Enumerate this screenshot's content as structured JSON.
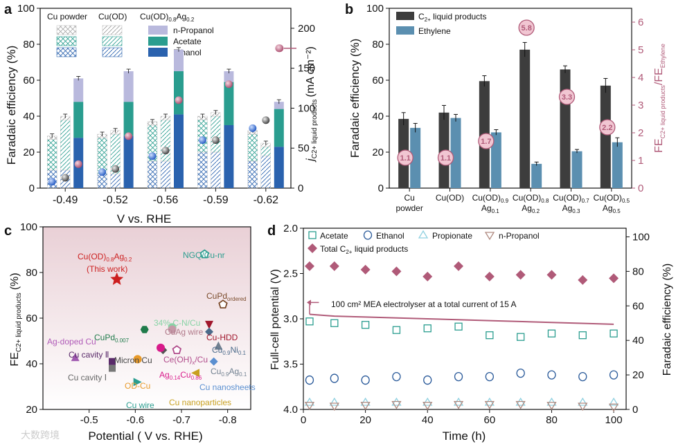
{
  "panels": {
    "a": "a",
    "b": "b",
    "c": "c",
    "d": "d"
  },
  "chart_data": [
    {
      "panel": "a",
      "type": "bar",
      "xlabel": "V vs. RHE",
      "ylabel": "Faradaic efficiency (%)",
      "ylabel2_main": "j",
      "ylabel2_sub": "C2+ liquid products",
      "ylabel2_unit": "(mA cm⁻²)",
      "categories": [
        "-0.49",
        "-0.52",
        "-0.56",
        "-0.59",
        "-0.62"
      ],
      "ylim": [
        0,
        100
      ],
      "y2lim": [
        0,
        225
      ],
      "yticks": [
        0,
        20,
        40,
        60,
        80,
        100
      ],
      "y2ticks": [
        0,
        50,
        100,
        150,
        200
      ],
      "catalyst_legend": [
        "Cu powder",
        "Cu(OD)",
        "Cu(OD)0.8Ag0.2"
      ],
      "product_legend": [
        {
          "name": "n-Propanol",
          "color": "#b9b9dd"
        },
        {
          "name": "Acetate",
          "color": "#2a9d8f"
        },
        {
          "name": "Ethanol",
          "color": "#2a62ae"
        }
      ],
      "groups": [
        {
          "catalyst": "Cu powder",
          "ethanol": [
            10,
            8,
            15,
            20,
            15
          ],
          "acetate": [
            17,
            20,
            20,
            18,
            15
          ],
          "propanol": [
            2,
            2,
            2,
            2,
            2
          ]
        },
        {
          "catalyst": "Cu(OD)",
          "ethanol": [
            10,
            8,
            15,
            20,
            18
          ],
          "acetate": [
            28,
            22,
            23,
            20,
            5
          ],
          "propanol": [
            2,
            2,
            2,
            2,
            2
          ]
        },
        {
          "catalyst": "Cu(OD)0.8Ag0.2",
          "ethanol": [
            28,
            29,
            41,
            35,
            23
          ],
          "acetate": [
            20,
            19,
            24,
            24,
            21
          ],
          "propanol": [
            13,
            17,
            12,
            6,
            4
          ]
        }
      ],
      "current_density": {
        "Cu powder": [
          8,
          20,
          40,
          60,
          75
        ],
        "Cu(OD)": [
          13,
          24,
          47,
          60,
          85
        ],
        "Cu(OD)0.8Ag0.2": [
          30,
          65,
          110,
          130,
          175
        ]
      }
    },
    {
      "panel": "b",
      "type": "bar",
      "ylabel": "Faradaic efficiency (%)",
      "ylabel2_main": "FE",
      "ylabel2_sub1": "C2+ liquid products",
      "ylabel2_mid": "/FE",
      "ylabel2_sub2": "Ethylene",
      "ylim": [
        0,
        100
      ],
      "y2lim": [
        0,
        6.5
      ],
      "yticks": [
        0,
        20,
        40,
        60,
        80,
        100
      ],
      "y2ticks": [
        0,
        1,
        2,
        3,
        4,
        5,
        6
      ],
      "categories": [
        {
          "line1": "Cu",
          "line2": "powder",
          "sub1": "",
          "sub2": ""
        },
        {
          "line1": "Cu(OD)",
          "line2": "",
          "sub1": "",
          "sub2": ""
        },
        {
          "line1": "Cu(OD)",
          "sub1": "0.9",
          "line2": "Ag",
          "sub2": "0.1"
        },
        {
          "line1": "Cu(OD)",
          "sub1": "0.8",
          "line2": "Ag",
          "sub2": "0.2"
        },
        {
          "line1": "Cu(OD)",
          "sub1": "0.7",
          "line2": "Ag",
          "sub2": "0.3"
        },
        {
          "line1": "Cu(OD)",
          "sub1": "0.5",
          "line2": "Ag",
          "sub2": "0.5"
        }
      ],
      "series": [
        {
          "name": "C2+ liquid products",
          "color": "#3d3d3d",
          "values": [
            38.5,
            42,
            59.5,
            77,
            66,
            57
          ],
          "errors": [
            3.5,
            4,
            3,
            4,
            2,
            4
          ]
        },
        {
          "name": "Ethylene",
          "color": "#5b8fb0",
          "values": [
            33.5,
            39,
            31,
            13.5,
            20.5,
            25.5
          ],
          "errors": [
            2.5,
            2,
            1.5,
            1,
            1,
            2.5
          ]
        }
      ],
      "ratios": [
        1.1,
        1.1,
        1.7,
        5.8,
        3.3,
        2.2
      ],
      "ratio_labels": [
        "1.1",
        "1.1",
        "1.7",
        "5.8",
        "3.3",
        "2.2"
      ]
    },
    {
      "panel": "c",
      "type": "scatter",
      "xlabel": "Potential ( V vs. RHE)",
      "ylabel_main": "FE",
      "ylabel_sub": "C2+ liquid products",
      "ylabel_unit": "(%)",
      "xlim": [
        -0.4,
        -0.85
      ],
      "ylim": [
        20,
        100
      ],
      "xticks": [
        "-0.5",
        "-0.6",
        "-0.7",
        "-0.8"
      ],
      "yticks": [
        20,
        40,
        60,
        80,
        100
      ],
      "points": [
        {
          "label": "Cu(OD)0.8Ag0.2 (This work)",
          "x": -0.56,
          "y": 77,
          "color": "#cc1f1f",
          "shape": "star"
        },
        {
          "label": "NGQ/Cu-nr",
          "x": -0.75,
          "y": 88,
          "color": "#2a9d8f",
          "shape": "pentagon"
        },
        {
          "label": "CuPd ordered",
          "x": -0.79,
          "y": 66,
          "color": "#7a4a2a",
          "shape": "pentagon"
        },
        {
          "label": "34% C-N/Cu",
          "x": -0.68,
          "y": 56,
          "color": "#88d4a6",
          "shape": "circle"
        },
        {
          "label": "CuAg wire",
          "x": -0.68,
          "y": 55,
          "color": "#c59aa8",
          "shape": "circle"
        },
        {
          "label": "CuPd0.007",
          "x": -0.62,
          "y": 55,
          "color": "#1f7a4a",
          "shape": "hexagon"
        },
        {
          "label": "Cu-HDD",
          "x": -0.76,
          "y": 57,
          "color": "#a0162c",
          "shape": "tri-down"
        },
        {
          "label": "Cu0.9Ni0.1",
          "x": -0.76,
          "y": 54,
          "color": "#4a6a8a",
          "shape": "diamond"
        },
        {
          "label": "Micron Cu",
          "x": -0.66,
          "y": 46,
          "color": "#555555",
          "shape": "diamond"
        },
        {
          "label": "Ce(OH)x/Cu",
          "x": -0.69,
          "y": 46,
          "color": "#b04a8a",
          "shape": "pentagon"
        },
        {
          "label": "Ag0.14Cu0.86",
          "x": -0.655,
          "y": 47,
          "color": "#d81b8a",
          "shape": "circle"
        },
        {
          "label": "Cu0.9Ag0.1",
          "x": -0.78,
          "y": 48,
          "color": "#708090",
          "shape": "triangle"
        },
        {
          "label": "Ag-doped Cu",
          "x": -0.47,
          "y": 43,
          "color": "#a05ab0",
          "shape": "triangle"
        },
        {
          "label": "Cu cavity II",
          "x": -0.55,
          "y": 41,
          "color": "#5a2a6a",
          "shape": "square"
        },
        {
          "label": "Cu cavity I",
          "x": -0.55,
          "y": 38,
          "color": "#777777",
          "shape": "square"
        },
        {
          "label": "OD-Cu",
          "x": -0.605,
          "y": 42,
          "color": "#e89a2a",
          "shape": "circle"
        },
        {
          "label": "Cu nanosheets",
          "x": -0.77,
          "y": 41,
          "color": "#5b8fd0",
          "shape": "diamond"
        },
        {
          "label": "Cu nanoparticles",
          "x": -0.73,
          "y": 36,
          "color": "#c8a020",
          "shape": "tri-left"
        },
        {
          "label": "Cu wire",
          "x": -0.605,
          "y": 32,
          "color": "#2a9d8f",
          "shape": "tri-right"
        }
      ],
      "label_texts": {
        "this_work_1": "Cu(OD)",
        "this_work_1a": "0.8",
        "this_work_1b": "Ag",
        "this_work_1c": "0.2",
        "this_work_2": "(This work)",
        "ngq": "NGQ/Cu-nr",
        "cupd_o_a": "CuPd",
        "cupd_o_b": "ordered",
        "cn": "34% C-N/Cu",
        "cuag": "CuAg wire",
        "cupd007a": "CuPd",
        "cupd007b": "0.007",
        "hdd": "Cu-HDD",
        "cuni_a": "Cu",
        "cuni_b": "0.9",
        "cuni_c": "Ni",
        "cuni_d": "0.1",
        "micron": "Micron Cu",
        "ceoh": "Ce(OH)",
        "ceoh_x": "x",
        "ceoh_b": "/Cu",
        "agcu_a": "Ag",
        "agcu_b": "0.14",
        "agcu_c": "Cu",
        "agcu_d": "0.86",
        "cuag01a": "Cu",
        "cuag01b": "0.9",
        "cuag01c": "Ag",
        "cuag01d": "0.1",
        "agdoped": "Ag-doped Cu",
        "cav2": "Cu cavity Ⅱ",
        "cav1": "Cu cavity Ⅰ",
        "odcu": "OD-Cu",
        "sheets": "Cu nanosheets",
        "nanop": "Cu nanoparticles",
        "wire": "Cu wire"
      }
    },
    {
      "panel": "d",
      "type": "scatter",
      "xlabel": "Time (h)",
      "ylabel": "Full-cell potential (V)",
      "ylabel2": "Faradaic efficiency (%)",
      "xlim": [
        0,
        104
      ],
      "ylim_reversed": [
        2.0,
        4.0
      ],
      "y2lim": [
        0,
        105
      ],
      "xticks": [
        0,
        20,
        40,
        60,
        80,
        100
      ],
      "yticks": [
        "2.0",
        "2.5",
        "3.0",
        "3.5",
        "4.0"
      ],
      "y2ticks": [
        0,
        20,
        40,
        60,
        80,
        100
      ],
      "annotation": "100 cm² MEA electrolyser at a total current of 15 A",
      "legend": {
        "acetate": "Acetate",
        "ethanol": "Ethanol",
        "propionate": "Propionate",
        "propanol": "n-Propanol",
        "total_a": "Total C",
        "total_b": "2+",
        "total_c": " liquid products"
      },
      "x": [
        2,
        10,
        20,
        30,
        40,
        50,
        60,
        70,
        80,
        90,
        100
      ],
      "series": [
        {
          "name": "Acetate",
          "color": "#2a9d8f",
          "values": [
            51,
            50,
            49,
            46,
            47,
            48,
            43,
            42,
            44,
            43,
            44
          ]
        },
        {
          "name": "Ethanol",
          "color": "#2a5a9a",
          "values": [
            17,
            18,
            17,
            19,
            17,
            19,
            19,
            21,
            20,
            19,
            20
          ]
        },
        {
          "name": "Propionate",
          "color": "#8fd0e0",
          "values": [
            4,
            4,
            4,
            4,
            4,
            4,
            4,
            4,
            4,
            4,
            4
          ]
        },
        {
          "name": "n-Propanol",
          "color": "#b08a80",
          "values": [
            2.5,
            2,
            2.5,
            3,
            2.5,
            3,
            3,
            3,
            2.5,
            2,
            1.5
          ]
        },
        {
          "name": "Total C2+ liquid products",
          "color": "#b05a78",
          "values": [
            83,
            83,
            81,
            80,
            77,
            83,
            77,
            78,
            78,
            75,
            76
          ]
        }
      ],
      "potential_curve": {
        "x": [
          2,
          10,
          20,
          40,
          60,
          80,
          100
        ],
        "v": [
          2.95,
          2.97,
          2.98,
          3.0,
          3.02,
          3.04,
          3.06
        ]
      }
    }
  ],
  "watermark": "大数跨境"
}
